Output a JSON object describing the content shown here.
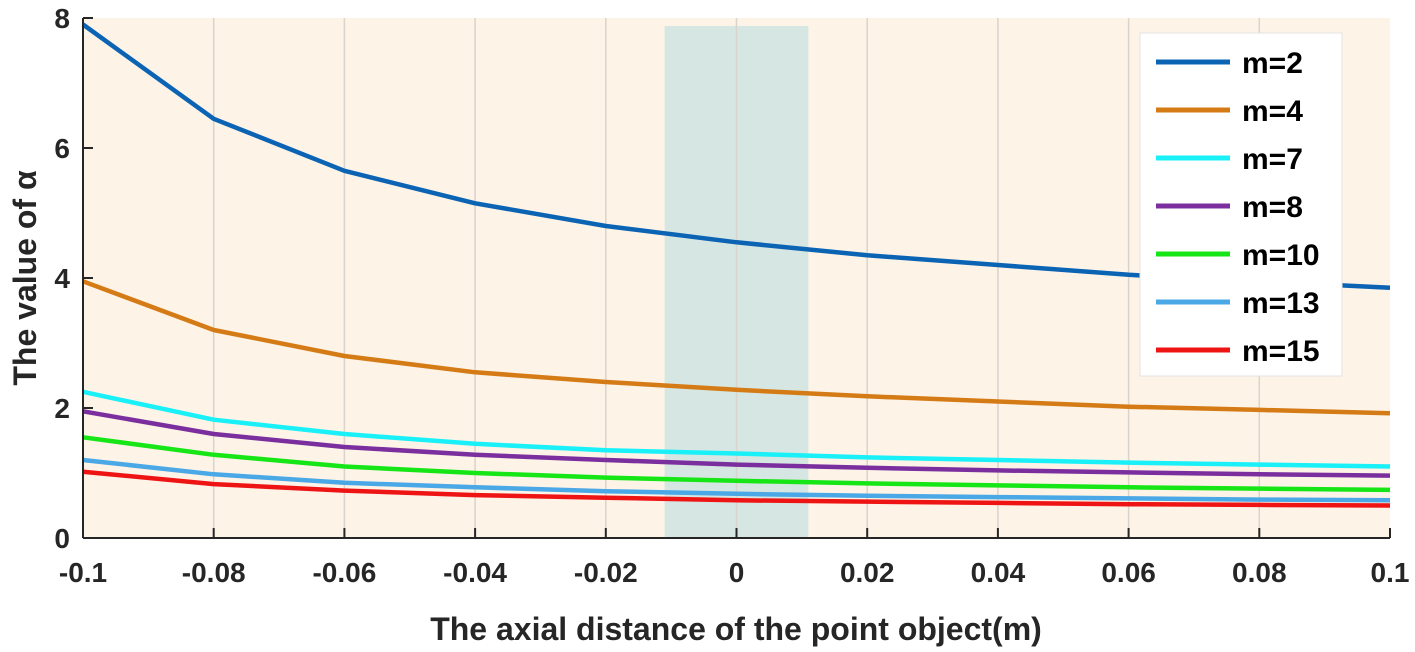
{
  "chart_data": {
    "type": "line",
    "title": "",
    "xlabel": "The axial distance of the point object(m)",
    "ylabel": "The value of α",
    "xlim": [
      -0.1,
      0.1
    ],
    "ylim": [
      0,
      8
    ],
    "xticks": [
      "-0.1",
      "-0.08",
      "-0.06",
      "-0.04",
      "-0.02",
      "0",
      "0.02",
      "0.04",
      "0.06",
      "0.08",
      "0.1"
    ],
    "yticks": [
      "0",
      "2",
      "4",
      "6",
      "8"
    ],
    "grid": "vertical",
    "legend_position": "top-right",
    "background_color": "#fdf3e7",
    "shaded_region": {
      "x": [
        -0.011,
        0.011
      ],
      "color": "#cfe3e1"
    },
    "x": [
      -0.1,
      -0.08,
      -0.06,
      -0.04,
      -0.02,
      0,
      0.02,
      0.04,
      0.06,
      0.08,
      0.1
    ],
    "series": [
      {
        "name": "m=2",
        "color": "#0b63b4",
        "values": [
          7.9,
          6.45,
          5.65,
          5.15,
          4.8,
          4.55,
          4.35,
          4.2,
          4.05,
          3.95,
          3.85
        ]
      },
      {
        "name": "m=4",
        "color": "#d57b16",
        "values": [
          3.95,
          3.2,
          2.8,
          2.55,
          2.4,
          2.28,
          2.18,
          2.1,
          2.02,
          1.97,
          1.92
        ]
      },
      {
        "name": "m=7",
        "color": "#19f0f8",
        "values": [
          2.25,
          1.82,
          1.6,
          1.45,
          1.35,
          1.3,
          1.24,
          1.2,
          1.16,
          1.13,
          1.1
        ]
      },
      {
        "name": "m=8",
        "color": "#7b2f9e",
        "values": [
          1.95,
          1.6,
          1.4,
          1.28,
          1.2,
          1.13,
          1.08,
          1.04,
          1.01,
          0.98,
          0.96
        ]
      },
      {
        "name": "m=10",
        "color": "#16e616",
        "values": [
          1.55,
          1.28,
          1.1,
          1.0,
          0.93,
          0.88,
          0.84,
          0.81,
          0.78,
          0.76,
          0.74
        ]
      },
      {
        "name": "m=13",
        "color": "#4aa8e6",
        "values": [
          1.2,
          0.98,
          0.85,
          0.78,
          0.72,
          0.68,
          0.65,
          0.63,
          0.61,
          0.59,
          0.58
        ]
      },
      {
        "name": "m=15",
        "color": "#ee1414",
        "values": [
          1.02,
          0.83,
          0.73,
          0.66,
          0.62,
          0.58,
          0.56,
          0.54,
          0.52,
          0.51,
          0.5
        ]
      }
    ]
  }
}
